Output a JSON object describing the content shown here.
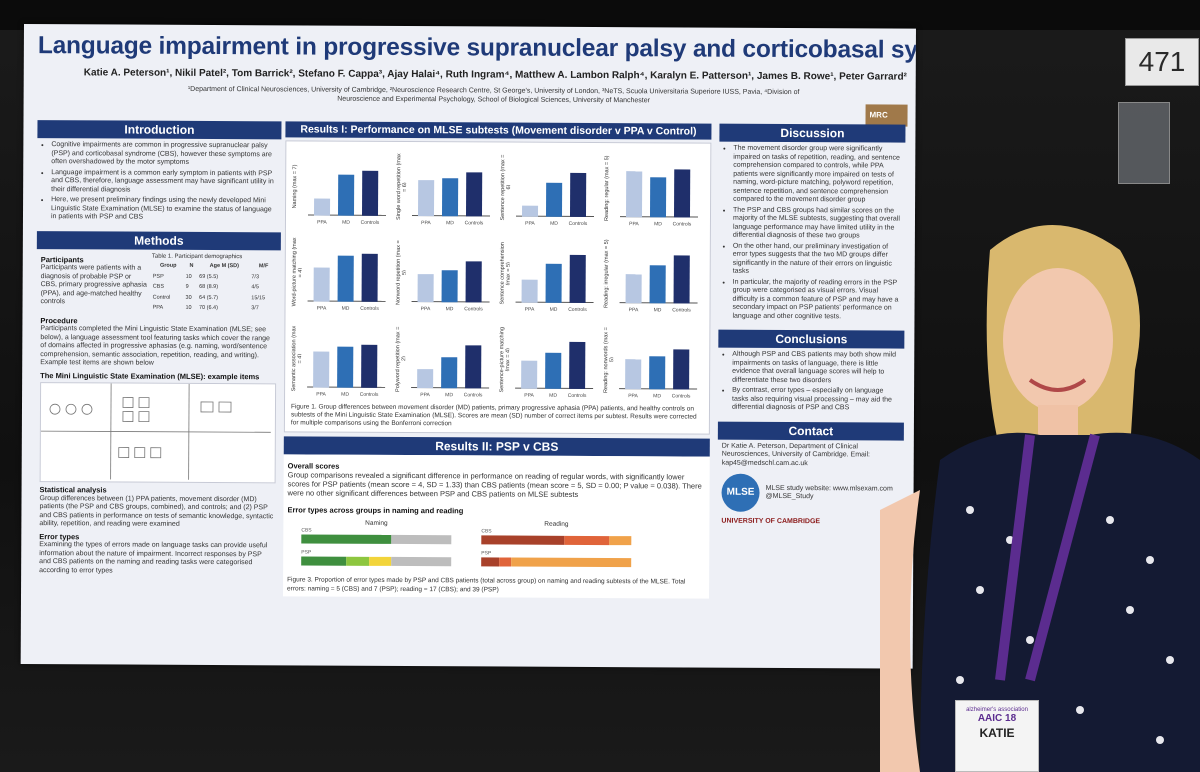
{
  "booth_number": "471",
  "poster": {
    "title": "Language impairment in progressive supranuclear palsy and corticobasal syndrome",
    "authors": "Katie A. Peterson¹, Nikil Patel², Tom Barrick², Stefano F. Cappa³, Ajay Halai⁴, Ruth Ingram⁴, Matthew A. Lambon Ralph⁴, Karalyn E. Patterson¹, James B. Rowe¹, Peter Garrard²",
    "affiliations": "¹Department of Clinical Neurosciences, University of Cambridge, ²Neuroscience Research Centre, St George's, University of London, ³NeTS, Scuola Universitaria Superiore IUSS, Pavia, ⁴Division of Neuroscience and Experimental Psychology, School of Biological Sciences, University of Manchester",
    "mrc_logo": "MRC",
    "introduction": {
      "heading": "Introduction",
      "bullets": [
        "Cognitive impairments are common in progressive supranuclear palsy (PSP) and corticobasal syndrome (CBS), however these symptoms are often overshadowed by the motor symptoms",
        "Language impairment is a common early symptom in patients with PSP and CBS, therefore, language assessment may have significant utility in their differential diagnosis",
        "Here, we present preliminary findings using the newly developed Mini Linguistic State Examination (MLSE) to examine the status of language in patients with PSP and CBS"
      ]
    },
    "methods": {
      "heading": "Methods",
      "participants_heading": "Participants",
      "participants_text": "Participants were patients with a diagnosis of probable PSP or CBS, primary progressive aphasia (PPA), and age-matched healthy controls",
      "table_caption": "Table 1. Participant demographics",
      "table_headers": [
        "Group",
        "N",
        "Age M (SD)",
        "M/F"
      ],
      "table_rows": [
        [
          "PSP",
          "10",
          "69 (5.5)",
          "7/3"
        ],
        [
          "CBS",
          "9",
          "68 (8.9)",
          "4/5"
        ],
        [
          "Control",
          "30",
          "64 (5.7)",
          "15/15"
        ],
        [
          "PPA",
          "10",
          "70 (6.4)",
          "3/7"
        ]
      ],
      "procedure_heading": "Procedure",
      "procedure_text": "Participants completed the Mini Linguistic State Examination (MLSE; see below), a language assessment tool featuring tasks which cover the range of domains affected in progressive aphasias (e.g. naming, word/sentence comprehension, semantic association, repetition, reading, and writing). Example test items are shown below",
      "mlse_heading": "The Mini Linguistic State Examination (MLSE): example items",
      "stats_heading": "Statistical analysis",
      "stats_text": "Group differences between (1) PPA patients, movement disorder (MD) patients (the PSP and CBS groups, combined), and controls; and (2) PSP and CBS patients in performance on tests of semantic knowledge, syntactic ability, repetition, and reading were examined",
      "error_heading": "Error types",
      "error_text": "Examining the types of errors made on language tasks can provide useful information about the nature of impairment. Incorrect responses by PSP and CBS patients on the naming and reading tasks were categorised according to error types"
    },
    "results1": {
      "heading": "Results I: Performance on MLSE subtests (Movement disorder v PPA v Control)",
      "x_labels": [
        "PPA",
        "MD",
        "Controls"
      ],
      "caption": "Figure 1. Group differences between movement disorder (MD) patients, primary progressive aphasia (PPA) patients, and healthy controls on subtests of the Mini Linguistic State Examination (MLSE). Scores are mean (SD) number of correct items per subtest. Results were corrected for multiple comparisons using the Bonferroni correction"
    },
    "results2": {
      "heading": "Results II: PSP v CBS",
      "overall_heading": "Overall scores",
      "overall_text": "Group comparisons revealed a significant difference in performance on reading of regular words, with significantly lower scores for PSP patients (mean score = 4, SD = 1.33) than CBS patients (mean score = 5, SD = 0.00; P value = 0.038). There were no other significant differences between PSP and CBS patients on MLSE subtests",
      "error_types_heading": "Error types across groups in naming and reading",
      "naming_label": "Naming",
      "reading_label": "Reading",
      "caption": "Figure 3. Proportion of error types made by PSP and CBS patients (total across group) on naming and reading subtests of the MLSE. Total errors: naming = 5 (CBS) and 7 (PSP); reading = 17 (CBS); and 39 (PSP)"
    },
    "discussion": {
      "heading": "Discussion",
      "bullets": [
        "The movement disorder group were significantly impaired on tasks of repetition, reading, and sentence comprehension compared to controls, while PPA patients were significantly more impaired on tests of naming, word-picture matching, polyword repetition, sentence repetition, and sentence comprehension compared to the movement disorder group",
        "The PSP and CBS groups had similar scores on the majority of the MLSE subtests, suggesting that overall language performance may have limited utility in the differential diagnosis of these two groups",
        "On the other hand, our preliminary investigation of error types suggests that the two MD groups differ significantly in the nature of their errors on linguistic tasks",
        "In particular, the majority of reading errors in the PSP group were categorised as visual errors. Visual difficulty is a common feature of PSP and may have a secondary impact on PSP patients' performance on language and other cognitive tests."
      ]
    },
    "conclusions": {
      "heading": "Conclusions",
      "bullets": [
        "Although PSP and CBS patients may both show mild impairments on tasks of language, there is little evidence that overall language scores will help to differentiate these two disorders",
        "By contrast, error types – especially on language tasks also requiring visual processing – may aid the differential diagnosis of PSP and CBS"
      ]
    },
    "contact": {
      "heading": "Contact",
      "text": "Dr Katie A. Peterson, Department of Clinical Neurosciences, University of Cambridge. Email: kap45@medschl.cam.ac.uk",
      "website": "MLSE study website: www.mlsexam.com",
      "twitter": "@MLSE_Study",
      "mlse_logo": "MLSE",
      "cambridge_logo": "UNIVERSITY OF CAMBRIDGE"
    }
  },
  "badge": {
    "org": "alzheimer's association",
    "event": "AAIC 18",
    "name": "KATIE"
  },
  "chart_data": {
    "type": "bar",
    "title": "Results I: Performance on MLSE subtests (Movement disorder v PPA v Control)",
    "categories": [
      "PPA",
      "MD",
      "Controls"
    ],
    "panels": [
      {
        "ylabel": "Naming (max = 7)",
        "values": [
          2.5,
          6.2,
          6.8
        ],
        "ylim": [
          0,
          9
        ]
      },
      {
        "ylabel": "Single word repetition (max = 6)",
        "values": [
          4.8,
          5.0,
          5.9
        ],
        "ylim": [
          0,
          8
        ]
      },
      {
        "ylabel": "Sentence repetition (max = 6)",
        "values": [
          1.5,
          4.5,
          5.9
        ],
        "ylim": [
          0,
          8
        ]
      },
      {
        "ylabel": "Reading: regular (max = 5)",
        "values": [
          4.6,
          4.0,
          4.8
        ],
        "ylim": [
          0,
          6
        ]
      },
      {
        "ylabel": "Word-picture matching (max = 4)",
        "values": [
          2.8,
          3.8,
          4.0
        ],
        "ylim": [
          0,
          5
        ]
      },
      {
        "ylabel": "Nonword repetition (max = 5)",
        "values": [
          2.8,
          3.2,
          4.1
        ],
        "ylim": [
          0,
          6
        ]
      },
      {
        "ylabel": "Sentence comprehension (max = 5)",
        "values": [
          2.3,
          3.9,
          4.8
        ],
        "ylim": [
          0,
          6
        ]
      },
      {
        "ylabel": "Reading: irregular (max = 5)",
        "values": [
          2.9,
          3.8,
          4.8
        ],
        "ylim": [
          0,
          6
        ]
      },
      {
        "ylabel": "Semantic association (max = 4)",
        "values": [
          3.0,
          3.4,
          3.6
        ],
        "ylim": [
          0,
          5
        ]
      },
      {
        "ylabel": "Polyword repetition (max = 2)",
        "values": [
          0.8,
          1.3,
          1.8
        ],
        "ylim": [
          0,
          2.5
        ]
      },
      {
        "ylabel": "Sentence-picture matching (max = 4)",
        "values": [
          2.3,
          3.0,
          3.9
        ],
        "ylim": [
          0,
          5
        ]
      },
      {
        "ylabel": "Reading: nonwords (max = 5)",
        "values": [
          3.0,
          3.3,
          4.0
        ],
        "ylim": [
          0,
          6
        ]
      }
    ],
    "colors": [
      "#b7c7e2",
      "#2e6fb5",
      "#1f2f6b"
    ]
  }
}
